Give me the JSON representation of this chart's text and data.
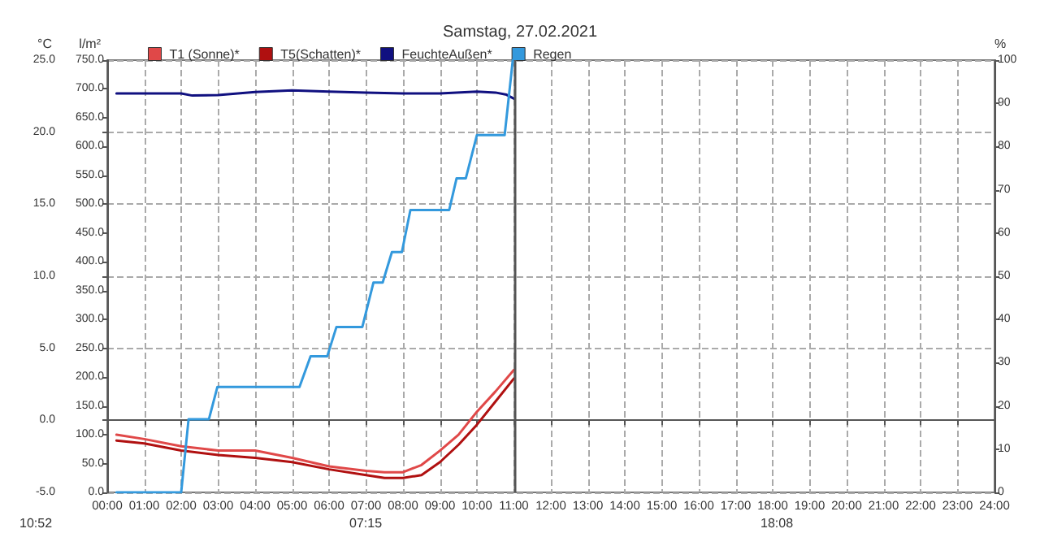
{
  "chart_data": {
    "type": "line",
    "title": "Samstag, 27.02.2021",
    "ylabel": "°C",
    "y2label": "l/m²",
    "y3label": "%",
    "xlim": [
      0,
      24
    ],
    "xticks": [
      {
        "value": 0,
        "label": "00:00"
      },
      {
        "value": 1,
        "label": "01:00"
      },
      {
        "value": 2,
        "label": "02:00"
      },
      {
        "value": 3,
        "label": "03:00"
      },
      {
        "value": 4,
        "label": "04:00"
      },
      {
        "value": 5,
        "label": "05:00"
      },
      {
        "value": 6,
        "label": "06:00"
      },
      {
        "value": 7,
        "label": "07:00"
      },
      {
        "value": 8,
        "label": "08:00"
      },
      {
        "value": 9,
        "label": "09:00"
      },
      {
        "value": 10,
        "label": "10:00"
      },
      {
        "value": 11,
        "label": "11:00"
      },
      {
        "value": 12,
        "label": "12:00"
      },
      {
        "value": 13,
        "label": "13:00"
      },
      {
        "value": 14,
        "label": "14:00"
      },
      {
        "value": 15,
        "label": "15:00"
      },
      {
        "value": 16,
        "label": "16:00"
      },
      {
        "value": 17,
        "label": "17:00"
      },
      {
        "value": 18,
        "label": "18:00"
      },
      {
        "value": 19,
        "label": "19:00"
      },
      {
        "value": 20,
        "label": "20:00"
      },
      {
        "value": 21,
        "label": "21:00"
      },
      {
        "value": 22,
        "label": "22:00"
      },
      {
        "value": 23,
        "label": "23:00"
      },
      {
        "value": 24,
        "label": "24:00"
      }
    ],
    "ylim": [
      -5,
      25
    ],
    "yticks": [
      {
        "value": -5,
        "label": "-5.0"
      },
      {
        "value": 0,
        "label": "0.0"
      },
      {
        "value": 5,
        "label": "5.0"
      },
      {
        "value": 10,
        "label": "10.0"
      },
      {
        "value": 15,
        "label": "15.0"
      },
      {
        "value": 20,
        "label": "20.0"
      },
      {
        "value": 25,
        "label": "25.0"
      }
    ],
    "y2lim": [
      0,
      750
    ],
    "y2ticks": [
      {
        "value": 0,
        "label": "0.0"
      },
      {
        "value": 50,
        "label": "50.0"
      },
      {
        "value": 100,
        "label": "100.0"
      },
      {
        "value": 150,
        "label": "150.0"
      },
      {
        "value": 200,
        "label": "200.0"
      },
      {
        "value": 250,
        "label": "250.0"
      },
      {
        "value": 300,
        "label": "300.0"
      },
      {
        "value": 350,
        "label": "350.0"
      },
      {
        "value": 400,
        "label": "400.0"
      },
      {
        "value": 450,
        "label": "450.0"
      },
      {
        "value": 500,
        "label": "500.0"
      },
      {
        "value": 550,
        "label": "550.0"
      },
      {
        "value": 600,
        "label": "600.0"
      },
      {
        "value": 650,
        "label": "650.0"
      },
      {
        "value": 700,
        "label": "700.0"
      },
      {
        "value": 750,
        "label": "750.0"
      }
    ],
    "y3lim": [
      0,
      100
    ],
    "y3ticks": [
      0,
      10,
      20,
      30,
      40,
      50,
      60,
      70,
      80,
      90,
      100
    ],
    "grid": true,
    "legend": "top left",
    "marker": "none",
    "line_style": "solid",
    "ref_lines": [
      {
        "axis": "x",
        "value": 11,
        "color": "#555555"
      }
    ],
    "annotations": [
      "10:52",
      "07:15",
      "18:08"
    ],
    "series": [
      {
        "name": "T1 (Sonne)*",
        "color": "#e04848",
        "x": [
          0.25,
          1,
          2,
          3,
          4,
          5,
          6,
          7,
          7.5,
          8,
          8.5,
          9,
          9.5,
          10,
          10.5,
          11
        ],
        "values": [
          -1.0,
          -1.3,
          -1.8,
          -2.1,
          -2.1,
          -2.6,
          -3.2,
          -3.5,
          -3.6,
          -3.6,
          -3.1,
          -2.1,
          -1.0,
          0.6,
          2.0,
          3.5
        ]
      },
      {
        "name": "T5(Schatten)*",
        "color": "#b01010",
        "x": [
          0.25,
          1,
          2,
          3,
          4,
          5,
          6,
          7,
          7.5,
          8,
          8.5,
          9,
          9.5,
          10,
          10.5,
          11
        ],
        "values": [
          -1.4,
          -1.6,
          -2.1,
          -2.4,
          -2.6,
          -2.9,
          -3.4,
          -3.8,
          -4.0,
          -4.0,
          -3.8,
          -2.9,
          -1.7,
          -0.3,
          1.3,
          2.9
        ]
      },
      {
        "name": "FeuchteAußen*",
        "color": "#101080",
        "axis": "y3",
        "x": [
          0.25,
          2,
          2.3,
          3,
          4,
          5,
          6,
          7,
          8,
          9,
          10,
          10.5,
          10.8,
          11
        ],
        "values": [
          92.3,
          92.3,
          91.8,
          91.9,
          92.6,
          93.0,
          92.7,
          92.5,
          92.3,
          92.3,
          92.7,
          92.5,
          92.0,
          91.1
        ]
      },
      {
        "name": "Regen",
        "color": "#3399dd",
        "axis": "y2",
        "x": [
          0.25,
          2.0,
          2.2,
          2.75,
          2.98,
          5.2,
          5.5,
          5.95,
          6.2,
          6.9,
          7.2,
          7.45,
          7.7,
          7.97,
          8.2,
          9.25,
          9.45,
          9.7,
          10.0,
          10.75,
          10.97
        ],
        "values": [
          0,
          0,
          127,
          127,
          183,
          183,
          236,
          236,
          287,
          287,
          364,
          364,
          417,
          417,
          490,
          490,
          545,
          545,
          620,
          620,
          750
        ]
      }
    ]
  }
}
